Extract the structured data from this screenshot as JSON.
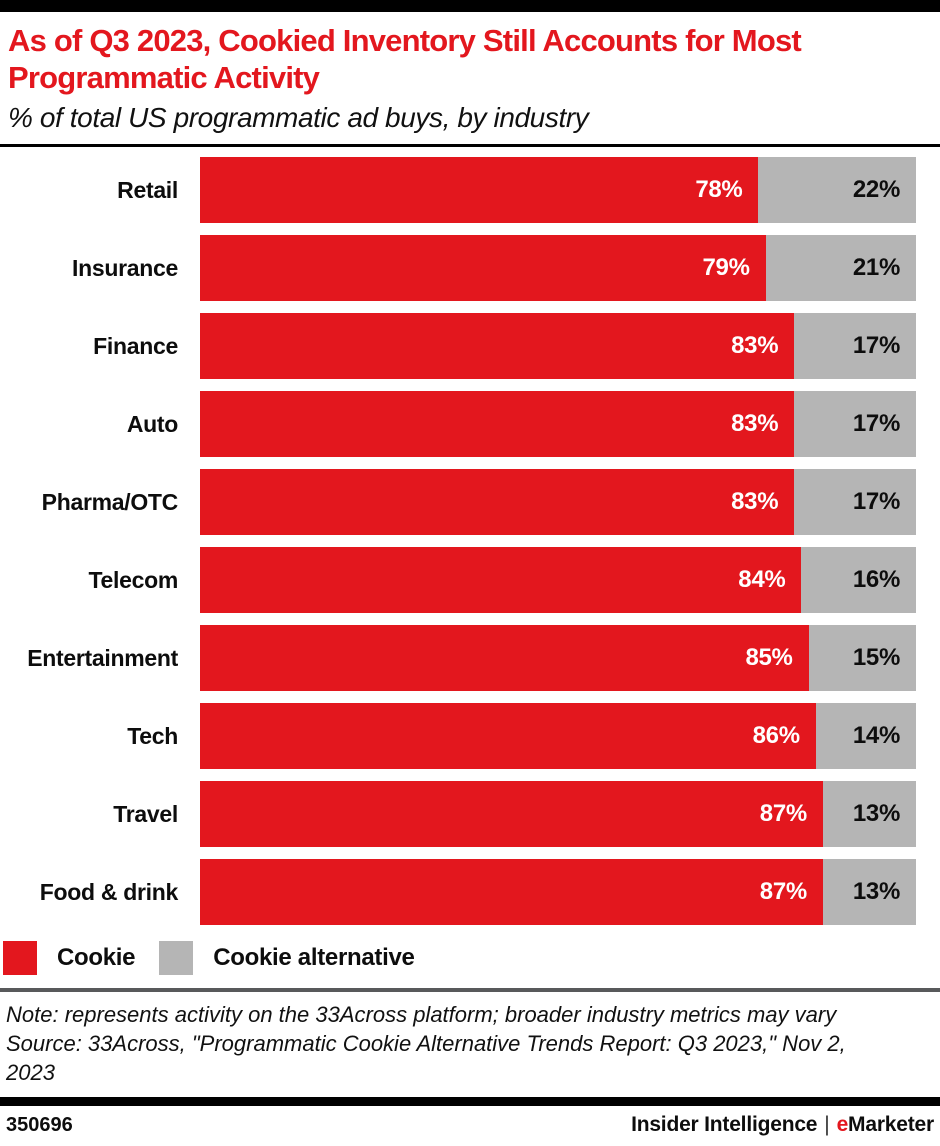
{
  "header": {
    "title": "As of Q3 2023, Cookied Inventory Still Accounts for Most Programmatic Activity",
    "subtitle": "% of total US programmatic ad buys, by industry"
  },
  "chart_data": {
    "type": "bar",
    "orientation": "horizontal",
    "stacked": true,
    "unit": "%",
    "title": "As of Q3 2023, Cookied Inventory Still Accounts for Most Programmatic Activity",
    "subtitle": "% of total US programmatic ad buys, by industry",
    "categories": [
      "Retail",
      "Insurance",
      "Finance",
      "Auto",
      "Pharma/OTC",
      "Telecom",
      "Entertainment",
      "Tech",
      "Travel",
      "Food & drink"
    ],
    "series": [
      {
        "name": "Cookie",
        "color": "#e3171e",
        "values": [
          78,
          79,
          83,
          83,
          83,
          84,
          85,
          86,
          87,
          87
        ]
      },
      {
        "name": "Cookie alternative",
        "color": "#b5b5b5",
        "values": [
          22,
          21,
          17,
          17,
          17,
          16,
          15,
          14,
          13,
          13
        ]
      }
    ],
    "xlim": [
      0,
      100
    ],
    "grid": false,
    "value_labels": "inside-right-aligned",
    "legend_position": "bottom-left"
  },
  "legend": {
    "items": [
      {
        "label": "Cookie",
        "color": "#e3171e"
      },
      {
        "label": "Cookie alternative",
        "color": "#b5b5b5"
      }
    ]
  },
  "footnote": {
    "note": "Note: represents activity on the 33Across platform; broader industry metrics may vary",
    "source": "Source: 33Across, \"Programmatic Cookie Alternative Trends Report: Q3 2023,\" Nov 2, 2023"
  },
  "footer": {
    "chart_id": "350696",
    "brand_left": "Insider Intelligence",
    "separator": "|",
    "brand_accent": "e",
    "brand_rest": "Marketer"
  },
  "colors": {
    "accent_red": "#e3171e",
    "bar_gray": "#b5b5b5",
    "divider_dark": "#58595b",
    "bar_black": "#000000"
  }
}
